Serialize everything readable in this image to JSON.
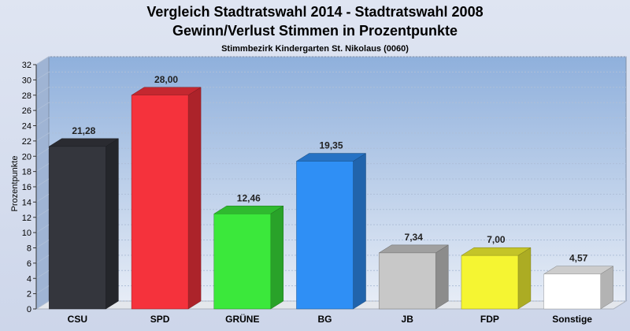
{
  "chart_data": {
    "type": "bar",
    "title": "Vergleich Stadtratswahl 2014 - Stadtratswahl 2008",
    "subtitle": "Gewinn/Verlust Stimmen in Prozentpunkte",
    "subsubtitle": "Stimmbezirk Kindergarten St. Nikolaus (0060)",
    "xlabel": "",
    "ylabel": "Prozentpunkte",
    "ylim": [
      0,
      32
    ],
    "yticks": [
      0,
      2,
      4,
      6,
      8,
      10,
      12,
      14,
      16,
      18,
      20,
      22,
      24,
      26,
      28,
      30,
      32
    ],
    "grid": true,
    "categories": [
      "CSU",
      "SPD",
      "GRÜNE",
      "BG",
      "JB",
      "FDP",
      "Sonstige"
    ],
    "values": [
      21.28,
      28.0,
      12.46,
      19.35,
      7.34,
      7.0,
      4.57
    ],
    "value_labels": [
      "21,28",
      "28,00",
      "12,46",
      "19,35",
      "7,34",
      "7,00",
      "4,57"
    ],
    "colors": [
      "#34363d",
      "#f5323c",
      "#3be83b",
      "#2f8ff5",
      "#c8c8c8",
      "#f5f532",
      "#ffffff"
    ]
  }
}
